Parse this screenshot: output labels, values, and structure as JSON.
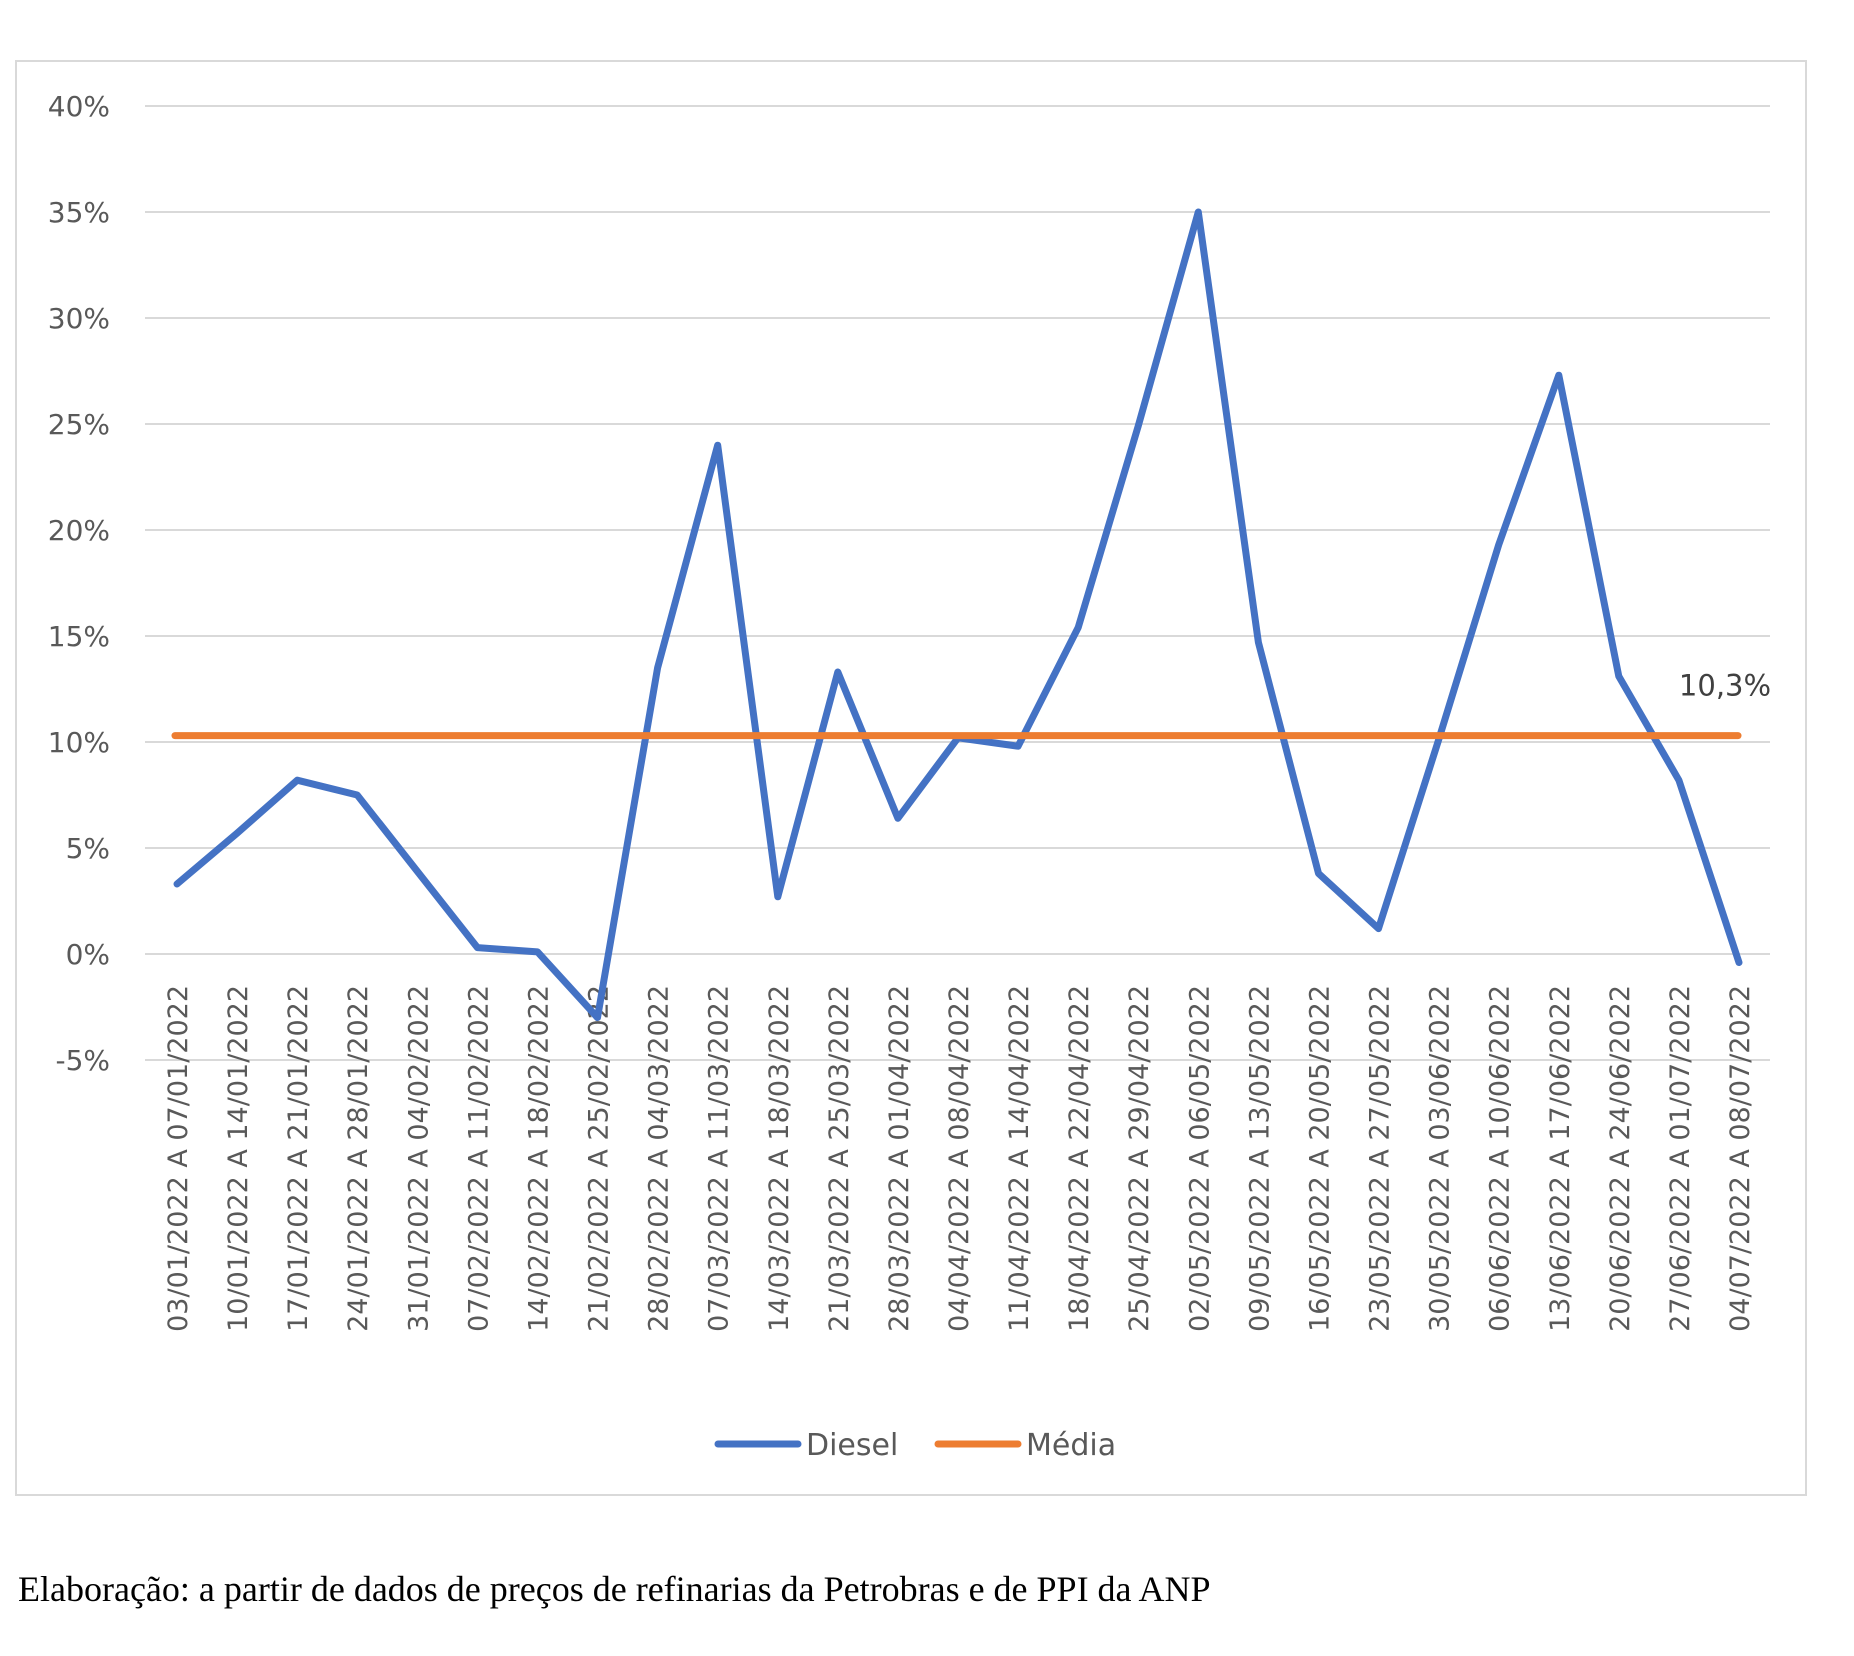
{
  "chart_data": {
    "type": "line",
    "title": "",
    "xlabel": "",
    "ylabel": "",
    "ylim": [
      -5,
      40
    ],
    "yticks": [
      "40%",
      "35%",
      "30%",
      "25%",
      "20%",
      "15%",
      "10%",
      "5%",
      "0%",
      "-5%"
    ],
    "ytick_values": [
      40,
      35,
      30,
      25,
      20,
      15,
      10,
      5,
      0,
      -5
    ],
    "grid": true,
    "legend_position": "bottom-center",
    "categories": [
      "03/01/2022 A 07/01/2022",
      "10/01/2022 A 14/01/2022",
      "17/01/2022 A 21/01/2022",
      "24/01/2022 A 28/01/2022",
      "31/01/2022 A 04/02/2022",
      "07/02/2022 A 11/02/2022",
      "14/02/2022 A 18/02/2022",
      "21/02/2022 A 25/02/2022",
      "28/02/2022 A 04/03/2022",
      "07/03/2022 A 11/03/2022",
      "14/03/2022 A 18/03/2022",
      "21/03/2022 A 25/03/2022",
      "28/03/2022 A 01/04/2022",
      "04/04/2022 A 08/04/2022",
      "11/04/2022 A 14/04/2022",
      "18/04/2022 A 22/04/2022",
      "25/04/2022 A 29/04/2022",
      "02/05/2022 A 06/05/2022",
      "09/05/2022 A 13/05/2022",
      "16/05/2022 A 20/05/2022",
      "23/05/2022 A 27/05/2022",
      "30/05/2022 A 03/06/2022",
      "06/06/2022 A 10/06/2022",
      "13/06/2022 A 17/06/2022",
      "20/06/2022 A 24/06/2022",
      "27/06/2022 A 01/07/2022",
      "04/07/2022 A 08/07/2022"
    ],
    "series": [
      {
        "name": "Diesel",
        "color": "#4472C4",
        "values": [
          3.3,
          5.7,
          8.2,
          7.5,
          3.9,
          0.3,
          0.1,
          -3.0,
          13.5,
          24.0,
          2.7,
          13.3,
          6.4,
          10.2,
          9.8,
          15.4,
          24.9,
          35.0,
          14.7,
          3.8,
          1.2,
          10.1,
          19.3,
          27.3,
          13.1,
          8.2,
          -0.4
        ]
      },
      {
        "name": "Média",
        "color": "#ED7D31",
        "values": [
          10.3,
          10.3,
          10.3,
          10.3,
          10.3,
          10.3,
          10.3,
          10.3,
          10.3,
          10.3,
          10.3,
          10.3,
          10.3,
          10.3,
          10.3,
          10.3,
          10.3,
          10.3,
          10.3,
          10.3,
          10.3,
          10.3,
          10.3,
          10.3,
          10.3,
          10.3,
          10.3
        ]
      }
    ],
    "mean_label": "10,3%",
    "grid_color": "#d9d9d9"
  },
  "caption": "Elaboração: a partir de dados de preços de refinarias da Petrobras e de PPI da ANP"
}
